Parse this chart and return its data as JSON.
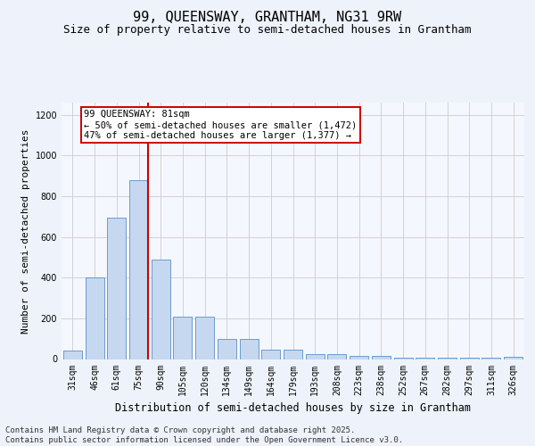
{
  "title": "99, QUEENSWAY, GRANTHAM, NG31 9RW",
  "subtitle": "Size of property relative to semi-detached houses in Grantham",
  "xlabel": "Distribution of semi-detached houses by size in Grantham",
  "ylabel": "Number of semi-detached properties",
  "categories": [
    "31sqm",
    "46sqm",
    "61sqm",
    "75sqm",
    "90sqm",
    "105sqm",
    "120sqm",
    "134sqm",
    "149sqm",
    "164sqm",
    "179sqm",
    "193sqm",
    "208sqm",
    "223sqm",
    "238sqm",
    "252sqm",
    "267sqm",
    "282sqm",
    "297sqm",
    "311sqm",
    "326sqm"
  ],
  "values": [
    40,
    400,
    695,
    880,
    490,
    210,
    210,
    100,
    100,
    45,
    45,
    25,
    25,
    15,
    15,
    5,
    5,
    5,
    5,
    5,
    10
  ],
  "bar_color": "#c5d8f0",
  "bar_edge_color": "#5b8fc9",
  "vline_color": "#cc0000",
  "annotation_text": "99 QUEENSWAY: 81sqm\n← 50% of semi-detached houses are smaller (1,472)\n47% of semi-detached houses are larger (1,377) →",
  "annotation_box_color": "#ffffff",
  "annotation_box_edge": "#cc0000",
  "ylim": [
    0,
    1260
  ],
  "yticks": [
    0,
    200,
    400,
    600,
    800,
    1000,
    1200
  ],
  "footer_text": "Contains HM Land Registry data © Crown copyright and database right 2025.\nContains public sector information licensed under the Open Government Licence v3.0.",
  "title_fontsize": 11,
  "subtitle_fontsize": 9,
  "xlabel_fontsize": 8.5,
  "ylabel_fontsize": 8,
  "tick_fontsize": 7,
  "footer_fontsize": 6.5,
  "annotation_fontsize": 7.5,
  "bg_color": "#eef2fa",
  "plot_bg_color": "#f5f7ff"
}
